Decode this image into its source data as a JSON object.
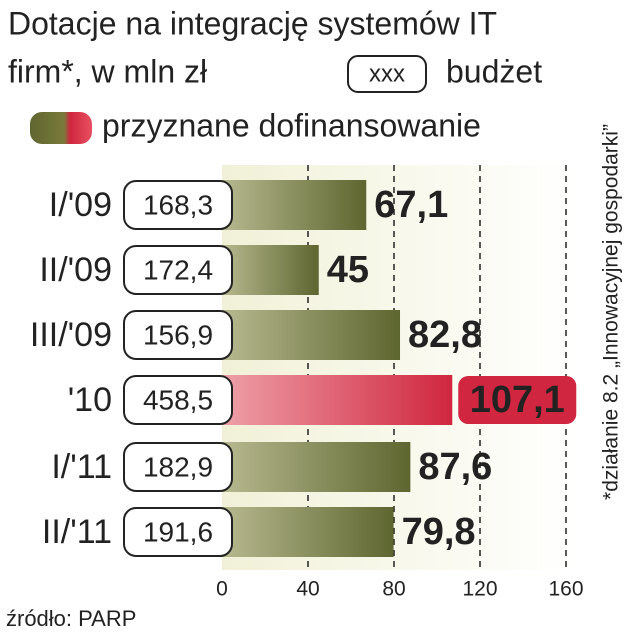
{
  "chart_data": {
    "type": "bar",
    "title": [
      "Dotacje na integrację systemów IT",
      "firm*, w mln zł"
    ],
    "categories": [
      "I/'09",
      "II/'09",
      "III/'09",
      "'10",
      "I/'11",
      "II/'11"
    ],
    "series": [
      {
        "name": "przyznane dofinansowanie",
        "color": "#5e6630",
        "colors": [
          "#5e6630",
          "#5e6630",
          "#5e6630",
          "#d0263f",
          "#5e6630",
          "#5e6630"
        ],
        "values": [
          67.1,
          45,
          82.8,
          107.1,
          87.6,
          79.8
        ],
        "value_labels": [
          "67,1",
          "45",
          "82,8",
          "107,1",
          "87,6",
          "79,8"
        ]
      },
      {
        "name": "budżet",
        "sample_label": "xxx",
        "values": [
          168.3,
          172.4,
          156.9,
          458.5,
          182.9,
          191.6
        ],
        "value_labels": [
          "168,3",
          "172,4",
          "156,9",
          "458,5",
          "182,9",
          "191,6"
        ]
      }
    ],
    "xlim": [
      0,
      160
    ],
    "xticks": [
      0,
      40,
      80,
      120,
      160
    ],
    "grid": true,
    "footnote": "*działanie 8.2 „Innowacyjnej gospodarki”",
    "source": "źródło: PARP"
  }
}
